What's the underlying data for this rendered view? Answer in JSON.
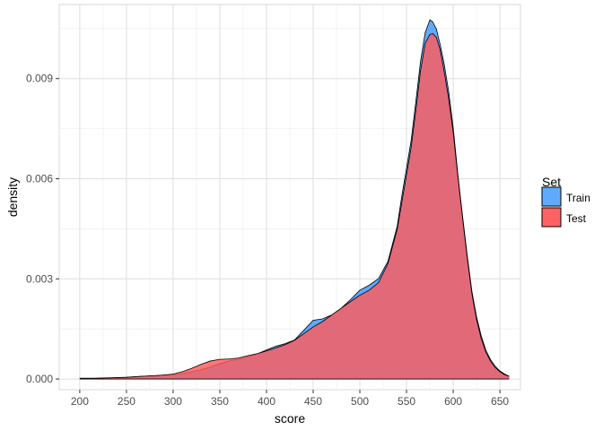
{
  "chart_data": {
    "type": "area",
    "xlabel": "score",
    "ylabel": "density",
    "xlim": [
      178,
      672
    ],
    "ylim": [
      -0.00032,
      0.01122
    ],
    "xticks": [
      200,
      250,
      300,
      350,
      400,
      450,
      500,
      550,
      600,
      650
    ],
    "xtick_labels": [
      "200",
      "250",
      "300",
      "350",
      "400",
      "450",
      "500",
      "550",
      "600",
      "650"
    ],
    "yticks": [
      0,
      0.003,
      0.006,
      0.009
    ],
    "ytick_labels": [
      "0.000",
      "0.003",
      "0.006",
      "0.009"
    ],
    "grid": true,
    "legend": {
      "title": "Set",
      "position": "right",
      "entries": [
        {
          "label": "Train",
          "color": "#56A5FF"
        },
        {
          "label": "Test",
          "color": "#FF5A5A"
        }
      ]
    },
    "series": [
      {
        "name": "Train",
        "fill_color": "#56A5FF",
        "fill_opacity": 0.95,
        "x": [
          200,
          215,
          225,
          235,
          250,
          265,
          280,
          290,
          300,
          310,
          320,
          330,
          340,
          350,
          360,
          370,
          380,
          390,
          400,
          410,
          420,
          430,
          440,
          450,
          460,
          470,
          480,
          490,
          500,
          510,
          520,
          530,
          540,
          545,
          550,
          555,
          560,
          565,
          570,
          575,
          578,
          582,
          586,
          590,
          595,
          600,
          605,
          610,
          615,
          620,
          625,
          630,
          635,
          640,
          645,
          650,
          655,
          660
        ],
        "y": [
          2e-05,
          2e-05,
          2e-05,
          3e-05,
          5e-05,
          8e-05,
          0.0001,
          0.00012,
          0.00012,
          0.00016,
          0.00022,
          0.00028,
          0.00036,
          0.00046,
          0.00054,
          0.00059,
          0.00066,
          0.00075,
          0.00087,
          0.00098,
          0.00106,
          0.00117,
          0.00146,
          0.00176,
          0.0018,
          0.00192,
          0.00212,
          0.00238,
          0.00266,
          0.00281,
          0.00301,
          0.00352,
          0.00458,
          0.0055,
          0.00632,
          0.00716,
          0.00832,
          0.00952,
          0.01038,
          0.01076,
          0.0107,
          0.01048,
          0.01002,
          0.00948,
          0.00864,
          0.00752,
          0.00612,
          0.00488,
          0.0037,
          0.00263,
          0.00186,
          0.00129,
          0.00086,
          0.00058,
          0.00038,
          0.00024,
          0.00015,
          8e-05
        ]
      },
      {
        "name": "Test",
        "fill_color": "#FF5A5A",
        "fill_opacity": 0.82,
        "x": [
          200,
          215,
          225,
          235,
          250,
          265,
          280,
          290,
          300,
          310,
          320,
          330,
          340,
          350,
          360,
          370,
          380,
          390,
          400,
          410,
          420,
          430,
          440,
          450,
          460,
          470,
          480,
          490,
          500,
          510,
          520,
          530,
          540,
          545,
          550,
          555,
          560,
          565,
          570,
          575,
          578,
          582,
          586,
          590,
          595,
          600,
          605,
          610,
          615,
          620,
          625,
          630,
          635,
          640,
          645,
          650,
          655,
          660
        ],
        "y": [
          2e-05,
          2e-05,
          3e-05,
          4e-05,
          5e-05,
          8e-05,
          0.0001,
          0.00012,
          0.00015,
          0.00022,
          0.00032,
          0.00044,
          0.00054,
          0.00059,
          0.0006,
          0.00063,
          0.0007,
          0.00076,
          0.00084,
          0.00093,
          0.00103,
          0.00116,
          0.00136,
          0.00156,
          0.00172,
          0.00192,
          0.00212,
          0.00232,
          0.00251,
          0.00266,
          0.00289,
          0.00345,
          0.00448,
          0.0053,
          0.00612,
          0.00695,
          0.00806,
          0.00924,
          0.01006,
          0.01032,
          0.01035,
          0.01023,
          0.00986,
          0.00926,
          0.00842,
          0.00738,
          0.00606,
          0.00482,
          0.00363,
          0.00256,
          0.00178,
          0.00121,
          0.0008,
          0.00053,
          0.00034,
          0.00022,
          0.00013,
          8e-05
        ]
      }
    ]
  }
}
